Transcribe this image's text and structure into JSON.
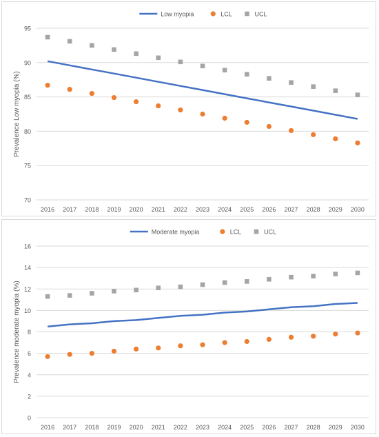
{
  "chart_data": [
    {
      "type": "line",
      "ylabel": "Prevalence Low myopia (%)",
      "ylim": [
        70,
        95
      ],
      "yticks": [
        70,
        75,
        80,
        85,
        90,
        95
      ],
      "grid": true,
      "legend_position": "top",
      "x": [
        2016,
        2017,
        2018,
        2019,
        2020,
        2021,
        2022,
        2023,
        2024,
        2025,
        2026,
        2027,
        2028,
        2029,
        2030
      ],
      "series": [
        {
          "name": "Low myopia",
          "kind": "line",
          "color": "#4472c4",
          "values": [
            90.2,
            89.6,
            89.0,
            88.4,
            87.8,
            87.2,
            86.6,
            86.0,
            85.4,
            84.8,
            84.2,
            83.6,
            83.0,
            82.4,
            81.8
          ]
        },
        {
          "name": "LCL",
          "kind": "circle",
          "color": "#ed7d31",
          "values": [
            86.7,
            86.1,
            85.5,
            84.9,
            84.3,
            83.7,
            83.1,
            82.5,
            81.9,
            81.3,
            80.7,
            80.1,
            79.5,
            78.9,
            78.3
          ]
        },
        {
          "name": "UCL",
          "kind": "square",
          "color": "#a5a5a5",
          "values": [
            93.7,
            93.1,
            92.5,
            91.9,
            91.3,
            90.7,
            90.1,
            89.5,
            88.9,
            88.3,
            87.7,
            87.1,
            86.5,
            85.9,
            85.3
          ]
        }
      ]
    },
    {
      "type": "line",
      "ylabel": "Prevalence moderate myopia (%)",
      "ylim": [
        0,
        16
      ],
      "yticks": [
        0,
        2,
        4,
        6,
        8,
        10,
        12,
        14,
        16
      ],
      "grid": true,
      "legend_position": "top",
      "x": [
        2016,
        2017,
        2018,
        2019,
        2020,
        2021,
        2022,
        2023,
        2024,
        2025,
        2026,
        2027,
        2028,
        2029,
        2030
      ],
      "series": [
        {
          "name": "Moderate myopia",
          "kind": "line",
          "color": "#4472c4",
          "values": [
            8.5,
            8.7,
            8.8,
            9.0,
            9.1,
            9.3,
            9.5,
            9.6,
            9.8,
            9.9,
            10.1,
            10.3,
            10.4,
            10.6,
            10.7
          ]
        },
        {
          "name": "LCL",
          "kind": "circle",
          "color": "#ed7d31",
          "values": [
            5.7,
            5.9,
            6.0,
            6.2,
            6.4,
            6.5,
            6.7,
            6.8,
            7.0,
            7.1,
            7.3,
            7.5,
            7.6,
            7.8,
            7.9
          ]
        },
        {
          "name": "UCL",
          "kind": "square",
          "color": "#a5a5a5",
          "values": [
            11.3,
            11.4,
            11.6,
            11.8,
            11.9,
            12.1,
            12.2,
            12.4,
            12.6,
            12.7,
            12.9,
            13.1,
            13.2,
            13.4,
            13.5
          ]
        }
      ]
    }
  ]
}
